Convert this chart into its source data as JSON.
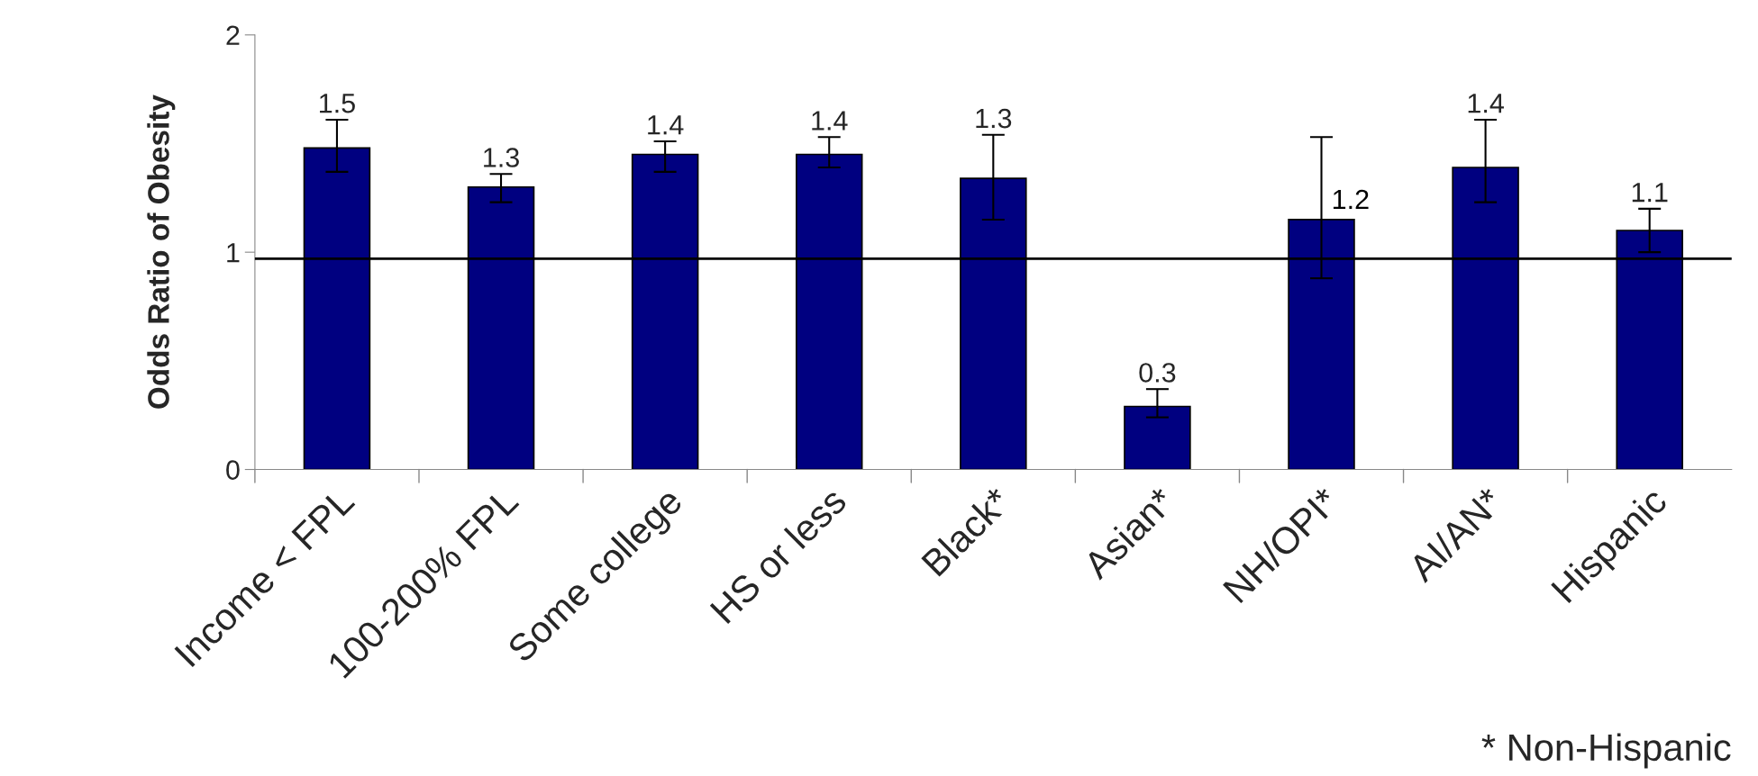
{
  "chart_data": {
    "type": "bar",
    "ylabel": "Odds Ratio of Obesity",
    "categories": [
      "Income < FPL",
      "100-200% FPL",
      "Some college",
      "HS or less",
      "Black*",
      "Asian*",
      "NH/OPI*",
      "AI/AN*",
      "Hispanic"
    ],
    "values": [
      1.48,
      1.3,
      1.45,
      1.45,
      1.34,
      0.29,
      1.15,
      1.39,
      1.1
    ],
    "errors": [
      [
        1.37,
        1.61
      ],
      [
        1.23,
        1.36
      ],
      [
        1.37,
        1.51
      ],
      [
        1.39,
        1.53
      ],
      [
        1.15,
        1.54
      ],
      [
        0.24,
        0.37
      ],
      [
        0.88,
        1.53
      ],
      [
        1.23,
        1.61
      ],
      [
        1.0,
        1.2
      ]
    ],
    "value_labels": [
      "1.5",
      "1.3",
      "1.4",
      "1.4",
      "1.3",
      "0.3",
      "1.2",
      "1.4",
      "1.1"
    ],
    "color": "#000080",
    "ylim": [
      0,
      2
    ],
    "yticks": [
      0,
      1,
      2
    ],
    "grid": false,
    "legend": false,
    "ref_lines": [
      {
        "axis": "y",
        "value": 0.97,
        "color": "#000000"
      }
    ],
    "annotations": [
      "* Non-Hispanic"
    ]
  }
}
